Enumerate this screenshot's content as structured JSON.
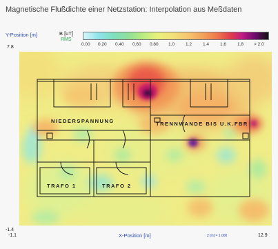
{
  "title": "Magnetische Flußdichte einer Netzstation: Interpolation aus Meßdaten",
  "y_axis": {
    "label": "Y-Position [m]",
    "top_value": "7.8",
    "bottom_value": "-1.4"
  },
  "x_axis": {
    "label": "X-Position [m]",
    "left_value": "-1.1",
    "right_value": "12.9",
    "scale_note": "2 [m] = 1.000"
  },
  "legend": {
    "unit": "B [uT]",
    "sub_label": "RMS",
    "ticks": [
      "0.00",
      "0.20",
      "0.40",
      "0.60",
      "0.80",
      "1.0",
      "1.2",
      "1.4",
      "1.6",
      "1.8",
      "> 2.0"
    ]
  },
  "plan_labels": {
    "nieder": "NIEDERSPANNUNG",
    "trenn": "TRENNWANDE BIS U.K.FBR",
    "trafo1": "TRAFO 1",
    "trafo2": "TRAFO 2"
  },
  "colors": {
    "low": "#9fe6e6",
    "mid": "#f2ee84",
    "high": "#e8434a",
    "peak": "#3a0a4a"
  }
}
